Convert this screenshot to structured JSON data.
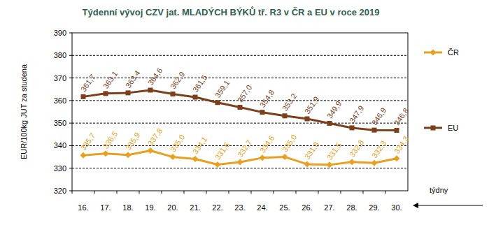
{
  "chart_data": {
    "type": "line",
    "title": "Týdenní vývoj CZV jat. MLADÝCH BÝKŮ tř. R3  v ČR a EU v roce 2019",
    "y_label": "EUR/100kg JUT za studena",
    "x_label": "týdny",
    "categories": [
      "16.",
      "17.",
      "18.",
      "19.",
      "20.",
      "21.",
      "22.",
      "23.",
      "24.",
      "25.",
      "26.",
      "27.",
      "28.",
      "29.",
      "30."
    ],
    "series": [
      {
        "name": "ČR",
        "color": "#e8a020",
        "marker": "diamond",
        "values": [
          335.7,
          336.5,
          335.9,
          337.8,
          335.0,
          334.1,
          331.6,
          332.7,
          334.6,
          335.0,
          331.8,
          331.5,
          332.8,
          332.3,
          334.3
        ],
        "value_labels": [
          "335,7",
          "336,5",
          "335,9",
          "337,8",
          "335,0",
          "334,1",
          "331,6",
          "332,7",
          "334,6",
          "335,0",
          "331,8",
          "331,5",
          "332,8",
          "332,3",
          "334,3"
        ]
      },
      {
        "name": "EU",
        "color": "#7b3f1c",
        "marker": "square",
        "values": [
          361.7,
          363.1,
          363.4,
          364.6,
          362.9,
          361.5,
          359.1,
          357.0,
          354.8,
          353.2,
          351.9,
          349.9,
          347.9,
          346.9,
          346.8
        ],
        "value_labels": [
          "361,7",
          "363,1",
          "363,4",
          "364,6",
          "362,9",
          "361,5",
          "359,1",
          "357,0",
          "354,8",
          "353,2",
          "351,9",
          "349,9",
          "347,9",
          "346,9",
          "346,8"
        ]
      }
    ],
    "ylim": [
      320,
      390
    ],
    "yticks": [
      320,
      330,
      340,
      350,
      360,
      370,
      380,
      390
    ],
    "grid": true,
    "legend": "right",
    "data_labels": true
  }
}
